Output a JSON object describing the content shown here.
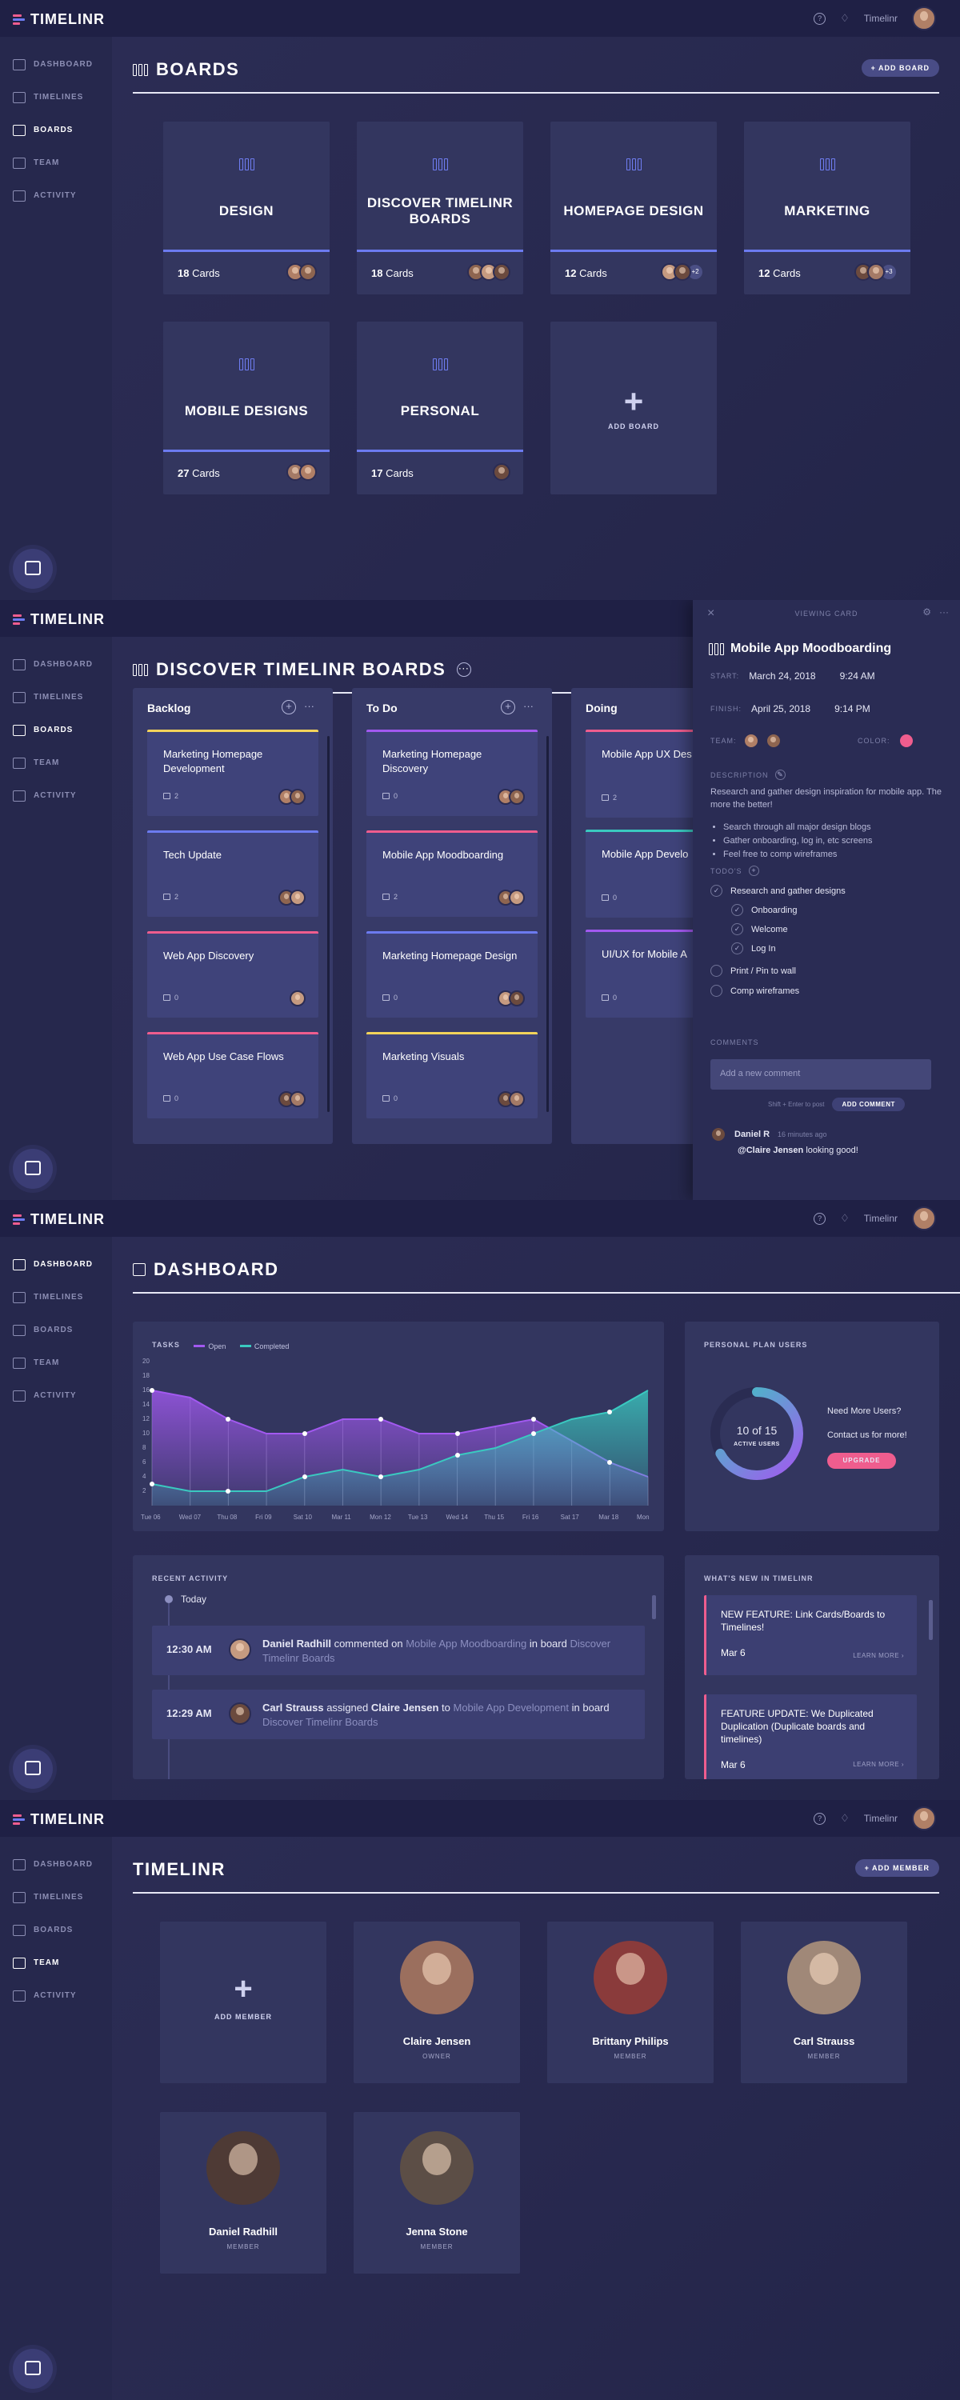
{
  "app": {
    "brand": "TIMELINR",
    "user": "Timelinr",
    "help_icon": "question-icon",
    "bell_icon": "bell-icon"
  },
  "nav": [
    "DASHBOARD",
    "TIMELINES",
    "BOARDS",
    "TEAM",
    "ACTIVITY"
  ],
  "boards_page": {
    "title": "BOARDS",
    "add_button": "+ ADD BOARD",
    "add_card_label": "ADD BOARD",
    "boards": [
      {
        "title": "DESIGN",
        "count": "18",
        "count_label": "Cards"
      },
      {
        "title": "DISCOVER TIMELINR BOARDS",
        "count": "18",
        "count_label": "Cards"
      },
      {
        "title": "HOMEPAGE DESIGN",
        "count": "12",
        "count_label": "Cards",
        "extra": "+2"
      },
      {
        "title": "MARKETING",
        "count": "12",
        "count_label": "Cards",
        "extra": "+3"
      },
      {
        "title": "MOBILE DESIGNS",
        "count": "27",
        "count_label": "Cards"
      },
      {
        "title": "PERSONAL",
        "count": "17",
        "count_label": "Cards"
      }
    ]
  },
  "board_detail": {
    "title": "DISCOVER TIMELINR BOARDS",
    "more": "···",
    "columns": [
      {
        "title": "Backlog",
        "tasks": [
          {
            "title": "Marketing Homepage Development",
            "comments": "2",
            "color": "#f3d35a"
          },
          {
            "title": "Tech Update",
            "comments": "2",
            "color": "#6c7bf0"
          },
          {
            "title": "Web App Discovery",
            "comments": "0",
            "color": "#ef5d8e"
          },
          {
            "title": "Web App Use Case Flows",
            "comments": "0",
            "color": "#ef5d8e"
          }
        ]
      },
      {
        "title": "To Do",
        "tasks": [
          {
            "title": "Marketing Homepage Discovery",
            "comments": "0",
            "color": "#a259f0"
          },
          {
            "title": "Mobile App Moodboarding",
            "comments": "2",
            "color": "#ef5d8e"
          },
          {
            "title": "Marketing Homepage Design",
            "comments": "0",
            "color": "#6c7bf0"
          },
          {
            "title": "Marketing Visuals",
            "comments": "0",
            "color": "#f3d35a"
          }
        ]
      },
      {
        "title": "Doing",
        "tasks": [
          {
            "title": "Mobile App UX Des",
            "comments": "2",
            "color": "#ef5d8e"
          },
          {
            "title": "Mobile App Develo",
            "comments": "0",
            "color": "#3ac9c0"
          },
          {
            "title": "UI/UX for Mobile A",
            "comments": "0",
            "color": "#a259f0"
          }
        ]
      }
    ],
    "panel": {
      "header": "VIEWING CARD",
      "title": "Mobile App Moodboarding",
      "start_label": "START:",
      "start_date": "March 24, 2018",
      "start_time": "9:24 AM",
      "finish_label": "FINISH:",
      "finish_date": "April 25, 2018",
      "finish_time": "9:14 PM",
      "team_label": "TEAM:",
      "color_label": "COLOR:",
      "color": "#ef5d8e",
      "desc_label": "DESCRIPTION",
      "description": "Research and gather design inspiration for mobile app. The more the better!",
      "bullets": [
        "Search through all major design blogs",
        "Gather onboarding, log in, etc screens",
        "Feel free to comp wireframes"
      ],
      "todos_label": "TODO'S",
      "todos": [
        {
          "text": "Research and gather designs",
          "done": true,
          "indent": false
        },
        {
          "text": "Onboarding",
          "done": true,
          "indent": true
        },
        {
          "text": "Welcome",
          "done": true,
          "indent": true
        },
        {
          "text": "Log In",
          "done": true,
          "indent": true
        },
        {
          "text": "Print / Pin to wall",
          "done": false,
          "indent": false
        },
        {
          "text": "Comp wireframes",
          "done": false,
          "indent": false
        }
      ],
      "comments_label": "COMMENTS",
      "comment_placeholder": "Add a new comment",
      "hint": "Shift + Enter to post",
      "add_comment": "ADD COMMENT",
      "comment_author": "Daniel R",
      "comment_time": "16 minutes ago",
      "comment_mention": "@Claire Jensen",
      "comment_text": " looking good!"
    }
  },
  "dashboard": {
    "title": "DASHBOARD",
    "chart_data": {
      "type": "area",
      "title": "TASKS",
      "x": [
        "Tue 06",
        "Wed 07",
        "Thu 08",
        "Fri 09",
        "Sat 10",
        "Mar 11",
        "Mon 12",
        "Tue 13",
        "Wed 14",
        "Thu 15",
        "Fri 16",
        "Sat 17",
        "Mar 18",
        "Mon"
      ],
      "yticks": [
        2,
        4,
        6,
        8,
        10,
        12,
        14,
        16,
        18,
        20
      ],
      "ylim": [
        0,
        20
      ],
      "grid": false,
      "legend": "top-left",
      "series": [
        {
          "name": "Open",
          "color": "#a259f0",
          "values": [
            16,
            15,
            12,
            10,
            10,
            12,
            12,
            10,
            10,
            11,
            12,
            9,
            6,
            4
          ]
        },
        {
          "name": "Completed",
          "color": "#3ac9c0",
          "values": [
            3,
            2,
            2,
            2,
            4,
            5,
            4,
            5,
            7,
            8,
            10,
            12,
            13,
            16
          ]
        }
      ]
    },
    "plan": {
      "title": "PERSONAL PLAN USERS",
      "value": "10 of 15",
      "label": "ACTIVE USERS",
      "fraction": 0.67,
      "need": "Need More Users?",
      "contact": "Contact us for more!",
      "upgrade": "UPGRADE"
    },
    "activity": {
      "title": "RECENT ACTIVITY",
      "today": "Today",
      "items": [
        {
          "time": "12:30 AM",
          "actor": "Daniel Radhill",
          "verb": " commented on ",
          "target": "Mobile App Moodboarding",
          "mid": " in board ",
          "board": "Discover Timelinr Boards"
        },
        {
          "time": "12:29 AM",
          "actor": "Carl Strauss",
          "verb": " assigned ",
          "extra": "Claire Jensen",
          "verb2": " to ",
          "target": "Mobile App Development",
          "mid": " in board ",
          "board": "Discover Timelinr Boards"
        }
      ]
    },
    "news": {
      "title": "WHAT'S NEW IN TIMELINR",
      "items": [
        {
          "text": "NEW FEATURE: Link Cards/Boards to Timelines!",
          "date": "Mar 6",
          "more": "LEARN MORE ›"
        },
        {
          "text": "FEATURE UPDATE: We Duplicated Duplication (Duplicate boards and timelines)",
          "date": "Mar 6",
          "more": "LEARN MORE ›"
        }
      ]
    }
  },
  "team_page": {
    "title": "TIMELINR",
    "add_button": "+ ADD MEMBER",
    "add_card_label": "ADD MEMBER",
    "members": [
      {
        "name": "Claire Jensen",
        "role": "OWNER",
        "color": "#9b6f5e"
      },
      {
        "name": "Brittany Philips",
        "role": "MEMBER",
        "color": "#8a3b3b"
      },
      {
        "name": "Carl Strauss",
        "role": "MEMBER",
        "color": "#a08878"
      },
      {
        "name": "Daniel Radhill",
        "role": "MEMBER",
        "color": "#4e3a35"
      },
      {
        "name": "Jenna Stone",
        "role": "MEMBER",
        "color": "#5c4e46"
      }
    ]
  }
}
